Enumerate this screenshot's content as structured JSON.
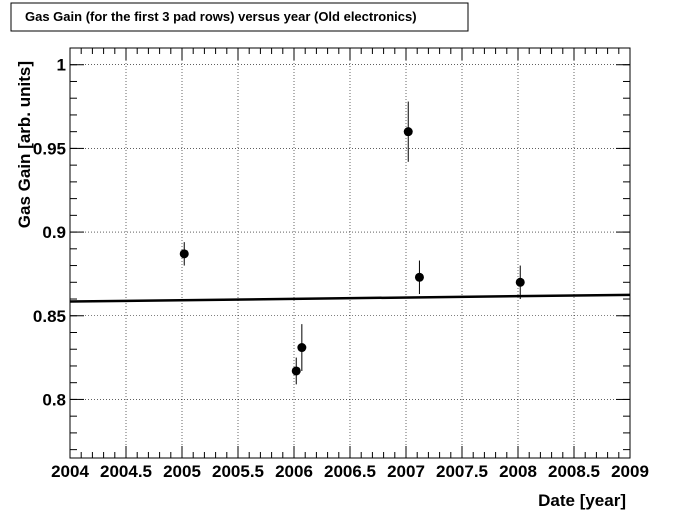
{
  "chart_data": {
    "type": "scatter",
    "title": "Gas Gain (for the first 3 pad rows) versus year (Old electronics)",
    "xlabel": "Date [year]",
    "ylabel": "Gas Gain [arb. units]",
    "xlim": [
      2004,
      2009
    ],
    "ylim": [
      0.765,
      1.01
    ],
    "grid": true,
    "x_ticks": [
      2004,
      2004.5,
      2005,
      2005.5,
      2006,
      2006.5,
      2007,
      2007.5,
      2008,
      2008.5,
      2009
    ],
    "x_tick_labels": [
      "2004",
      "2004.5",
      "2005",
      "2005.5",
      "2006",
      "2006.5",
      "2007",
      "2007.5",
      "2008",
      "2008.5",
      "2009"
    ],
    "y_ticks": [
      0.8,
      0.85,
      0.9,
      0.95,
      1.0
    ],
    "y_tick_labels": [
      "0.8",
      "0.85",
      "0.9",
      "0.95",
      "1"
    ],
    "series": [
      {
        "type": "scatter",
        "points": [
          {
            "x": 2005.02,
            "y": 0.887,
            "err": 0.007
          },
          {
            "x": 2006.02,
            "y": 0.817,
            "err": 0.008
          },
          {
            "x": 2006.07,
            "y": 0.831,
            "err": 0.014
          },
          {
            "x": 2007.02,
            "y": 0.96,
            "err": 0.018
          },
          {
            "x": 2007.12,
            "y": 0.873,
            "err": 0.01
          },
          {
            "x": 2008.02,
            "y": 0.87,
            "err": 0.01
          }
        ]
      },
      {
        "type": "line",
        "x": [
          2004,
          2009
        ],
        "y": [
          0.8585,
          0.8625
        ]
      }
    ],
    "colors": {
      "marker": "#000000",
      "line": "#000000",
      "grid": "#000000"
    }
  }
}
